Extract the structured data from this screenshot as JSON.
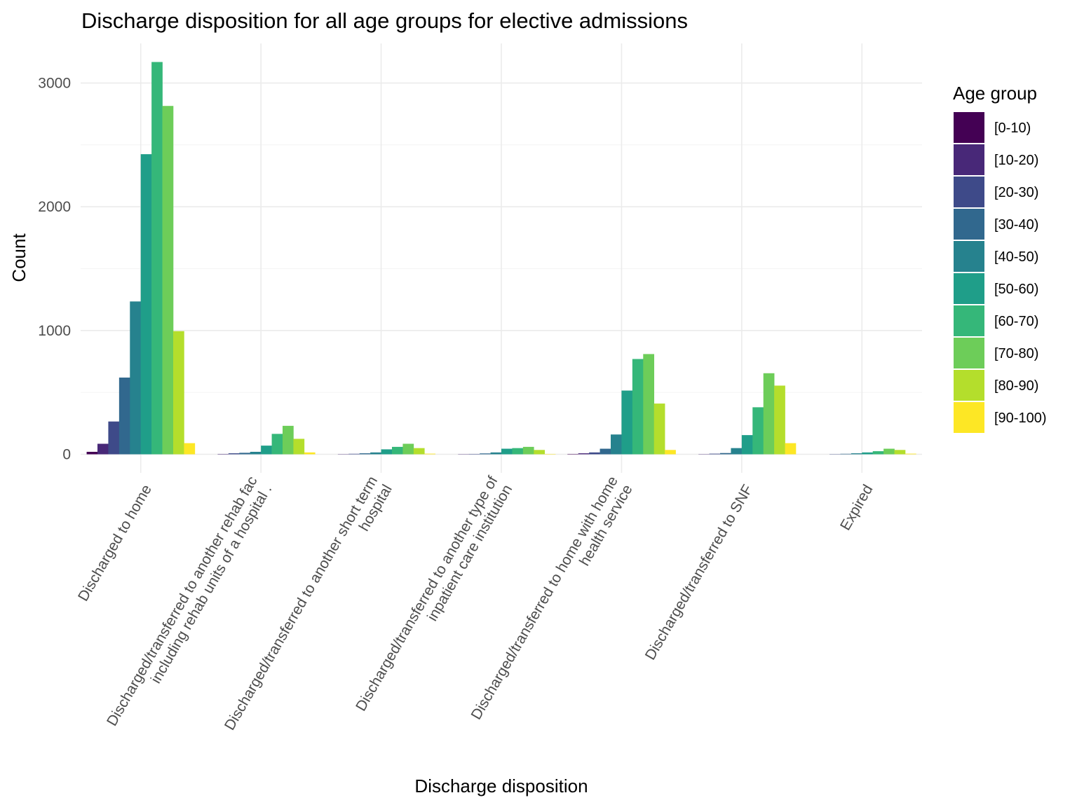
{
  "chart_data": {
    "type": "bar",
    "title": "Discharge disposition for all age groups for elective admissions",
    "xlabel": "Discharge disposition",
    "ylabel": "Count",
    "ylim": [
      -150,
      3320
    ],
    "yticks": [
      0,
      1000,
      2000,
      3000
    ],
    "grid": true,
    "legend_title": "Age group",
    "legend_position": "right",
    "categories": [
      [
        "Discharged to home"
      ],
      [
        "Discharged/transferred to another rehab fac",
        "including rehab units of a hospital ."
      ],
      [
        "Discharged/transferred to another short term",
        "hospital"
      ],
      [
        "Discharged/transferred to another type of",
        "inpatient care institution"
      ],
      [
        "Discharged/transferred to home with home",
        "health service"
      ],
      [
        "Discharged/transferred to SNF"
      ],
      [
        "Expired"
      ]
    ],
    "series": [
      {
        "name": "[0-10)",
        "color": "#440154",
        "values": [
          20,
          0,
          0,
          0,
          3,
          0,
          0
        ]
      },
      {
        "name": "[10-20)",
        "color": "#482878",
        "values": [
          85,
          3,
          2,
          2,
          8,
          2,
          0
        ]
      },
      {
        "name": "[20-30)",
        "color": "#3E4A89",
        "values": [
          265,
          8,
          4,
          3,
          15,
          5,
          2
        ]
      },
      {
        "name": "[30-40)",
        "color": "#31688E",
        "values": [
          620,
          12,
          8,
          7,
          45,
          10,
          4
        ]
      },
      {
        "name": "[40-50)",
        "color": "#26828E",
        "values": [
          1235,
          20,
          15,
          15,
          160,
          50,
          8
        ]
      },
      {
        "name": "[50-60)",
        "color": "#1F9E89",
        "values": [
          2425,
          70,
          40,
          45,
          515,
          155,
          15
        ]
      },
      {
        "name": "[60-70)",
        "color": "#35B779",
        "values": [
          3170,
          165,
          60,
          50,
          770,
          380,
          25
        ]
      },
      {
        "name": "[70-80)",
        "color": "#6DCD59",
        "values": [
          2815,
          230,
          85,
          60,
          810,
          655,
          45
        ]
      },
      {
        "name": "[80-90)",
        "color": "#B4DE2C",
        "values": [
          995,
          125,
          50,
          35,
          410,
          555,
          35
        ]
      },
      {
        "name": "[90-100)",
        "color": "#FDE725",
        "values": [
          90,
          15,
          5,
          3,
          35,
          90,
          5
        ]
      }
    ]
  }
}
